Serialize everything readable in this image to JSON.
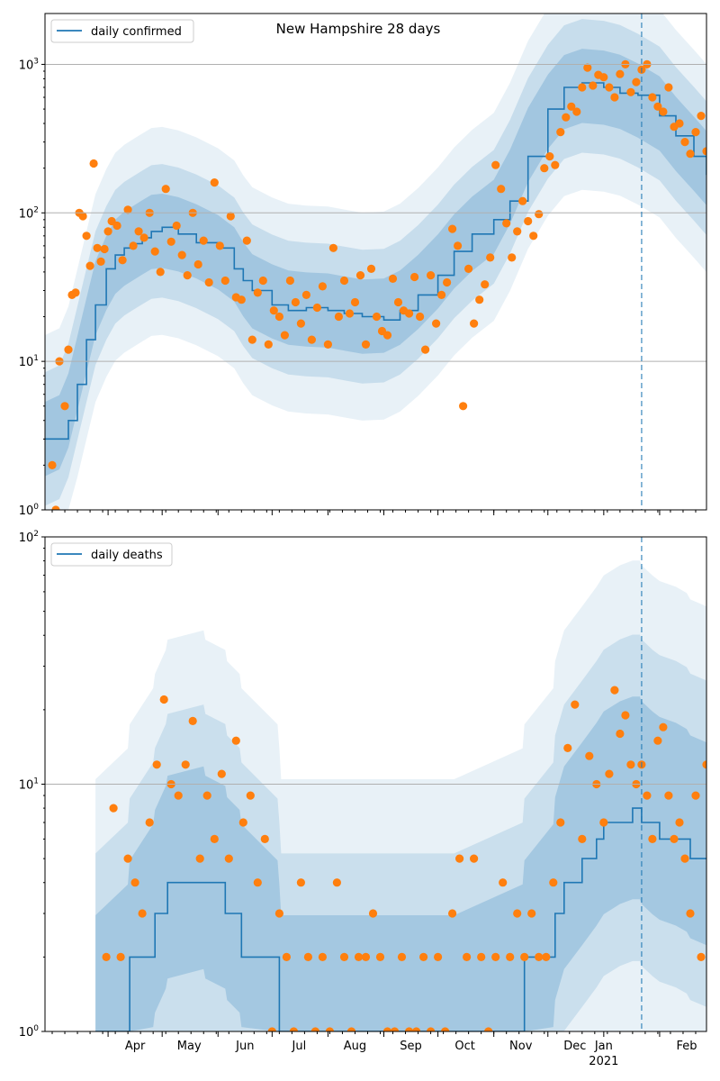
{
  "figure": {
    "title": "New Hampshire 28 days"
  },
  "colors": {
    "line": "#1f77b4",
    "points": "#ff7f0e",
    "band": "#1f77b4",
    "grid": "#b0b0b0",
    "marker_line": "#1f77b4"
  },
  "chart_data": [
    {
      "type": "line",
      "title": "New Hampshire 28 days",
      "scale": "log",
      "ylim": [
        1,
        2200
      ],
      "xlim": [
        "2020-02-26",
        "2021-02-27"
      ],
      "grid": "horizontal",
      "legend": {
        "placement": "top-left",
        "label": "daily confirmed"
      },
      "y_ticks": [
        "10^0",
        "10^1",
        "10^2",
        "10^3"
      ],
      "x_ticks": [
        "Apr",
        "May",
        "Jun",
        "Jul",
        "Aug",
        "Sep",
        "Oct",
        "Nov",
        "Dec",
        "Jan",
        "Feb"
      ],
      "x_year_label": "2021",
      "forecast_start": "2021-01-22",
      "series": [
        {
          "name": "daily confirmed",
          "kind": "line",
          "x": [
            "2020-02-26",
            "2020-03-05",
            "2020-03-10",
            "2020-03-15",
            "2020-03-20",
            "2020-03-25",
            "2020-03-31",
            "2020-04-05",
            "2020-04-10",
            "2020-04-15",
            "2020-04-20",
            "2020-04-25",
            "2020-05-01",
            "2020-05-10",
            "2020-05-20",
            "2020-06-01",
            "2020-06-10",
            "2020-06-15",
            "2020-06-20",
            "2020-07-01",
            "2020-07-10",
            "2020-07-20",
            "2020-08-01",
            "2020-08-10",
            "2020-08-20",
            "2020-09-01",
            "2020-09-10",
            "2020-09-20",
            "2020-10-01",
            "2020-10-10",
            "2020-10-20",
            "2020-11-01",
            "2020-11-10",
            "2020-11-20",
            "2020-12-01",
            "2020-12-10",
            "2020-12-20",
            "2021-01-01",
            "2021-01-10",
            "2021-01-20",
            "2021-02-01",
            "2021-02-10",
            "2021-02-20",
            "2021-02-27"
          ],
          "y": [
            3,
            3,
            4,
            7,
            14,
            24,
            42,
            52,
            58,
            62,
            68,
            75,
            80,
            72,
            63,
            58,
            42,
            35,
            30,
            24,
            22,
            23,
            22,
            21,
            20,
            19,
            22,
            28,
            38,
            55,
            72,
            90,
            120,
            240,
            500,
            700,
            750,
            700,
            640,
            620,
            450,
            330,
            240,
            180
          ]
        },
        {
          "name": "",
          "kind": "scatter",
          "x": [
            "2020-03-01",
            "2020-03-03",
            "2020-03-05",
            "2020-03-08",
            "2020-03-10",
            "2020-03-12",
            "2020-03-14",
            "2020-03-16",
            "2020-03-18",
            "2020-03-20",
            "2020-03-22",
            "2020-03-24",
            "2020-03-26",
            "2020-03-28",
            "2020-03-30",
            "2020-04-01",
            "2020-04-03",
            "2020-04-06",
            "2020-04-09",
            "2020-04-12",
            "2020-04-15",
            "2020-04-18",
            "2020-04-21",
            "2020-04-24",
            "2020-04-27",
            "2020-04-30",
            "2020-05-03",
            "2020-05-06",
            "2020-05-09",
            "2020-05-12",
            "2020-05-15",
            "2020-05-18",
            "2020-05-21",
            "2020-05-24",
            "2020-05-27",
            "2020-05-30",
            "2020-06-02",
            "2020-06-05",
            "2020-06-08",
            "2020-06-11",
            "2020-06-14",
            "2020-06-17",
            "2020-06-20",
            "2020-06-23",
            "2020-06-26",
            "2020-06-29",
            "2020-07-02",
            "2020-07-05",
            "2020-07-08",
            "2020-07-11",
            "2020-07-14",
            "2020-07-17",
            "2020-07-20",
            "2020-07-23",
            "2020-07-26",
            "2020-07-29",
            "2020-08-01",
            "2020-08-04",
            "2020-08-07",
            "2020-08-10",
            "2020-08-13",
            "2020-08-16",
            "2020-08-19",
            "2020-08-22",
            "2020-08-25",
            "2020-08-28",
            "2020-08-31",
            "2020-09-03",
            "2020-09-06",
            "2020-09-09",
            "2020-09-12",
            "2020-09-15",
            "2020-09-18",
            "2020-09-21",
            "2020-09-24",
            "2020-09-27",
            "2020-09-30",
            "2020-10-03",
            "2020-10-06",
            "2020-10-09",
            "2020-10-12",
            "2020-10-15",
            "2020-10-18",
            "2020-10-21",
            "2020-10-24",
            "2020-10-27",
            "2020-10-30",
            "2020-11-02",
            "2020-11-05",
            "2020-11-08",
            "2020-11-11",
            "2020-11-14",
            "2020-11-17",
            "2020-11-20",
            "2020-11-23",
            "2020-11-26",
            "2020-11-29",
            "2020-12-02",
            "2020-12-05",
            "2020-12-08",
            "2020-12-11",
            "2020-12-14",
            "2020-12-17",
            "2020-12-20",
            "2020-12-23",
            "2020-12-26",
            "2020-12-29",
            "2021-01-01",
            "2021-01-04",
            "2021-01-07",
            "2021-01-10",
            "2021-01-13",
            "2021-01-16",
            "2021-01-19",
            "2021-01-22",
            "2021-01-25",
            "2021-01-28",
            "2021-01-31",
            "2021-02-03",
            "2021-02-06",
            "2021-02-09",
            "2021-02-12",
            "2021-02-15",
            "2021-02-18",
            "2021-02-21",
            "2021-02-24",
            "2021-02-27"
          ],
          "y": [
            2,
            1,
            10,
            5,
            12,
            28,
            29,
            100,
            95,
            70,
            44,
            215,
            58,
            47,
            57,
            75,
            88,
            82,
            48,
            105,
            60,
            75,
            68,
            100,
            55,
            40,
            145,
            64,
            82,
            52,
            38,
            100,
            45,
            65,
            34,
            160,
            60,
            35,
            95,
            27,
            26,
            65,
            14,
            29,
            35,
            13,
            22,
            20,
            15,
            35,
            25,
            18,
            28,
            14,
            23,
            32,
            13,
            58,
            20,
            35,
            21,
            25,
            38,
            13,
            42,
            20,
            16,
            15,
            36,
            25,
            22,
            21,
            37,
            20,
            12,
            38,
            18,
            28,
            34,
            78,
            60,
            5,
            42,
            18,
            26,
            33,
            50,
            210,
            145,
            85,
            50,
            75,
            120,
            88,
            70,
            98,
            200,
            240,
            210,
            350,
            440,
            520,
            480,
            700,
            950,
            720,
            850,
            820,
            700,
            600,
            860,
            1000,
            650,
            760,
            920,
            1000,
            600,
            520,
            480,
            700,
            380,
            400,
            300,
            250,
            350,
            450,
            260
          ]
        }
      ]
    },
    {
      "type": "line",
      "scale": "log",
      "ylim": [
        1,
        100
      ],
      "xlim": [
        "2020-02-26",
        "2021-02-27"
      ],
      "grid": "horizontal",
      "legend": {
        "placement": "top-left",
        "label": "daily deaths"
      },
      "y_ticks": [
        "10^0",
        "10^1",
        "10^2"
      ],
      "x_ticks": [
        "Apr",
        "May",
        "Jun",
        "Jul",
        "Aug",
        "Sep",
        "Oct",
        "Nov",
        "Dec",
        "Jan",
        "Feb"
      ],
      "x_year_label": "2021",
      "forecast_start": "2021-01-22",
      "series": [
        {
          "name": "daily deaths",
          "kind": "line",
          "x": [
            "2020-03-25",
            "2020-04-12",
            "2020-04-13",
            "2020-04-26",
            "2020-04-27",
            "2020-05-03",
            "2020-05-04",
            "2020-05-24",
            "2020-05-25",
            "2020-06-05",
            "2020-06-06",
            "2020-06-13",
            "2020-06-14",
            "2020-07-04",
            "2020-07-05",
            "2020-07-06",
            "2020-07-10",
            "2020-07-25",
            "2020-07-26",
            "2020-08-30",
            "2020-09-01",
            "2020-10-01",
            "2020-10-10",
            "2020-11-17",
            "2020-11-18",
            "2020-12-04",
            "2020-12-05",
            "2020-12-10",
            "2020-12-20",
            "2020-12-28",
            "2021-01-01",
            "2021-01-10",
            "2021-01-17",
            "2021-01-21",
            "2021-01-22",
            "2021-01-28",
            "2021-02-01",
            "2021-02-10",
            "2021-02-16",
            "2021-02-18",
            "2021-02-27"
          ],
          "y": [
            1,
            1,
            2,
            2,
            3,
            3,
            4,
            4,
            4,
            3,
            3,
            3,
            2,
            2,
            1,
            1,
            1,
            1,
            1,
            1,
            1,
            1,
            1,
            1,
            2,
            2,
            3,
            4,
            5,
            6,
            7,
            7,
            8,
            8,
            7,
            7,
            6,
            6,
            6,
            5,
            5
          ]
        },
        {
          "name": "",
          "kind": "scatter",
          "x": [
            "2020-03-31",
            "2020-04-04",
            "2020-04-08",
            "2020-04-12",
            "2020-04-16",
            "2020-04-20",
            "2020-04-24",
            "2020-04-28",
            "2020-05-02",
            "2020-05-06",
            "2020-05-10",
            "2020-05-14",
            "2020-05-18",
            "2020-05-22",
            "2020-05-26",
            "2020-05-30",
            "2020-06-03",
            "2020-06-07",
            "2020-06-11",
            "2020-06-15",
            "2020-06-19",
            "2020-06-23",
            "2020-06-27",
            "2020-07-01",
            "2020-07-05",
            "2020-07-09",
            "2020-07-13",
            "2020-07-17",
            "2020-07-21",
            "2020-07-25",
            "2020-07-29",
            "2020-08-02",
            "2020-08-06",
            "2020-08-10",
            "2020-08-14",
            "2020-08-18",
            "2020-08-22",
            "2020-08-26",
            "2020-08-30",
            "2020-09-03",
            "2020-09-07",
            "2020-09-11",
            "2020-09-15",
            "2020-09-19",
            "2020-09-23",
            "2020-09-27",
            "2020-10-01",
            "2020-10-05",
            "2020-10-09",
            "2020-10-13",
            "2020-10-17",
            "2020-10-21",
            "2020-10-25",
            "2020-10-29",
            "2020-11-02",
            "2020-11-06",
            "2020-11-10",
            "2020-11-14",
            "2020-11-18",
            "2020-11-22",
            "2020-11-26",
            "2020-11-30",
            "2020-12-04",
            "2020-12-08",
            "2020-12-12",
            "2020-12-16",
            "2020-12-20",
            "2020-12-24",
            "2020-12-28",
            "2021-01-01",
            "2021-01-04",
            "2021-01-07",
            "2021-01-10",
            "2021-01-13",
            "2021-01-16",
            "2021-01-19",
            "2021-01-22",
            "2021-01-25",
            "2021-01-28",
            "2021-01-31",
            "2021-02-03",
            "2021-02-06",
            "2021-02-09",
            "2021-02-12",
            "2021-02-15",
            "2021-02-18",
            "2021-02-21",
            "2021-02-24",
            "2021-02-27"
          ],
          "y": [
            2,
            8,
            2,
            5,
            4,
            3,
            7,
            12,
            22,
            10,
            9,
            12,
            18,
            5,
            9,
            6,
            11,
            5,
            15,
            7,
            9,
            4,
            6,
            1,
            3,
            2,
            1,
            4,
            2,
            1,
            2,
            1,
            4,
            2,
            1,
            2,
            2,
            3,
            2,
            1,
            1,
            2,
            1,
            1,
            2,
            1,
            2,
            1,
            3,
            5,
            2,
            5,
            2,
            1,
            2,
            4,
            2,
            3,
            2,
            3,
            2,
            2,
            4,
            7,
            14,
            21,
            6,
            13,
            10,
            7,
            11,
            24,
            16,
            19,
            12,
            10,
            12,
            9,
            6,
            15,
            17,
            9,
            6,
            7,
            5,
            3,
            9,
            2,
            12
          ]
        }
      ]
    }
  ]
}
